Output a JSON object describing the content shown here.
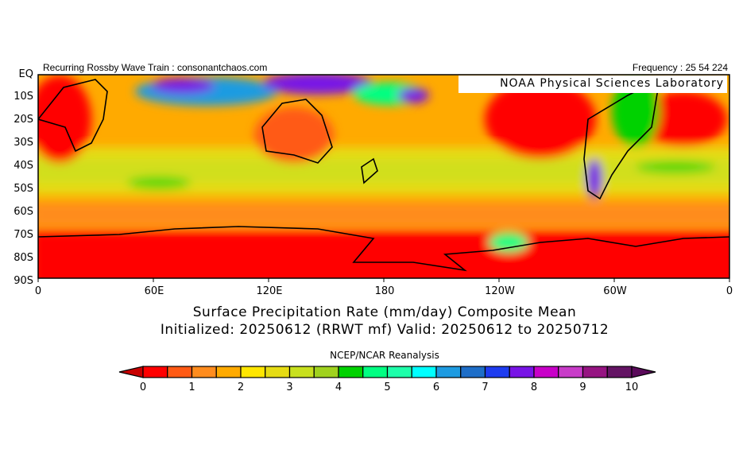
{
  "header": {
    "left_text": "Recurring Rossby Wave Train : consonantchaos.com",
    "right_text": "Frequency : 25 54 224",
    "lab_label": "NOAA Physical Sciences Laboratory"
  },
  "chart_data": {
    "type": "heatmap",
    "title": "Surface Precipitation Rate (mm/day) Composite Mean",
    "subtitle": "Initialized: 20250612 (RRWT mf) Valid: 20250612 to 20250712",
    "source": "NCEP/NCAR Reanalysis",
    "y_ticks": [
      "EQ",
      "10S",
      "20S",
      "30S",
      "40S",
      "50S",
      "60S",
      "70S",
      "80S",
      "90S"
    ],
    "x_ticks": [
      "0",
      "60E",
      "120E",
      "180",
      "120W",
      "60W",
      "0"
    ],
    "lat_range": [
      0,
      -90
    ],
    "lon_range": [
      0,
      360
    ],
    "units": "mm/day",
    "colorbar": {
      "ticks": [
        "0",
        "1",
        "2",
        "3",
        "4",
        "5",
        "6",
        "7",
        "8",
        "9",
        "10"
      ],
      "levels": [
        0,
        0.5,
        1,
        1.5,
        2,
        2.5,
        3,
        3.5,
        4,
        4.5,
        5,
        5.5,
        6,
        6.5,
        7,
        7.5,
        8,
        8.5,
        9,
        9.5,
        10
      ],
      "colors": [
        "#ff0000",
        "#ff5a14",
        "#ff8c1e",
        "#ffaa00",
        "#ffe600",
        "#e6dc14",
        "#c8e01e",
        "#a0d21e",
        "#00d200",
        "#00ff82",
        "#1effaa",
        "#00ffff",
        "#1e9be1",
        "#1e6ec8",
        "#1e3cf0",
        "#7814e6",
        "#c800c8",
        "#c83cc8",
        "#961482",
        "#641464"
      ],
      "under_color": "#c80000",
      "over_color": "#5a0a5a"
    }
  }
}
